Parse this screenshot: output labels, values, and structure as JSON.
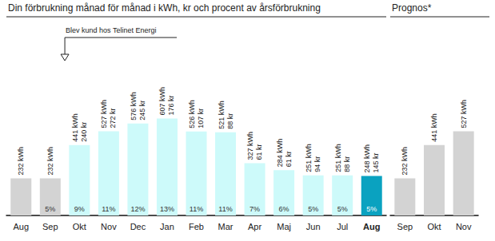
{
  "chart_data": [
    {
      "type": "bar",
      "title": "Din förbrukning månad för månad i kWh, kr och procent av årsförbrukning",
      "annotation": "Blev kund hos Telinet Energi",
      "categories": [
        "Aug",
        "Sep",
        "Okt",
        "Nov",
        "Dec",
        "Jan",
        "Feb",
        "Mar",
        "Apr",
        "Maj",
        "Jun",
        "Jul",
        "Aug"
      ],
      "values": [
        232,
        232,
        441,
        527,
        576,
        607,
        526,
        521,
        327,
        284,
        251,
        251,
        248
      ],
      "value_labels": [
        "232 kWh",
        "232 kWh",
        "441 kWh",
        "527 kWh",
        "576 kWh",
        "607 kWh",
        "526 kWh",
        "521 kWh",
        "327 kWh",
        "284 kWh",
        "251 kWh",
        "251 kWh",
        "248 kWh"
      ],
      "kr_values": [
        null,
        null,
        240,
        272,
        245,
        176,
        107,
        88,
        61,
        61,
        94,
        88,
        145
      ],
      "kr_labels": [
        null,
        null,
        "240 kr",
        "272 kr",
        "245 kr",
        "176 kr",
        "107 kr",
        "88 kr",
        "61 kr",
        "61 kr",
        "94 kr",
        "88 kr",
        "145 kr"
      ],
      "percent_values": [
        null,
        5,
        9,
        11,
        12,
        13,
        11,
        11,
        7,
        6,
        5,
        5,
        5
      ],
      "percent_labels": [
        null,
        "5%",
        "9%",
        "11%",
        "12%",
        "13%",
        "11%",
        "11%",
        "7%",
        "6%",
        "5%",
        "5%",
        "5%"
      ],
      "colors": [
        "#d3d3d3",
        "#d3d3d3",
        "#cdfafa",
        "#cdfafa",
        "#cdfafa",
        "#cdfafa",
        "#cdfafa",
        "#cdfafa",
        "#cdfafa",
        "#cdfafa",
        "#cdfafa",
        "#cdfafa",
        "#0aa2c0"
      ],
      "ylim": [
        0,
        700
      ],
      "tick_labels": "x",
      "data_labels": true
    },
    {
      "type": "bar",
      "title": "Prognos*",
      "categories": [
        "Sep",
        "Okt",
        "Nov"
      ],
      "values": [
        232,
        441,
        527
      ],
      "value_labels": [
        "232 kWh",
        "441 kWh",
        "527 kWh"
      ],
      "colors": [
        "#d3d3d3",
        "#d3d3d3",
        "#d3d3d3"
      ],
      "ylim": [
        0,
        700
      ],
      "tick_labels": "x",
      "data_labels": true
    }
  ]
}
